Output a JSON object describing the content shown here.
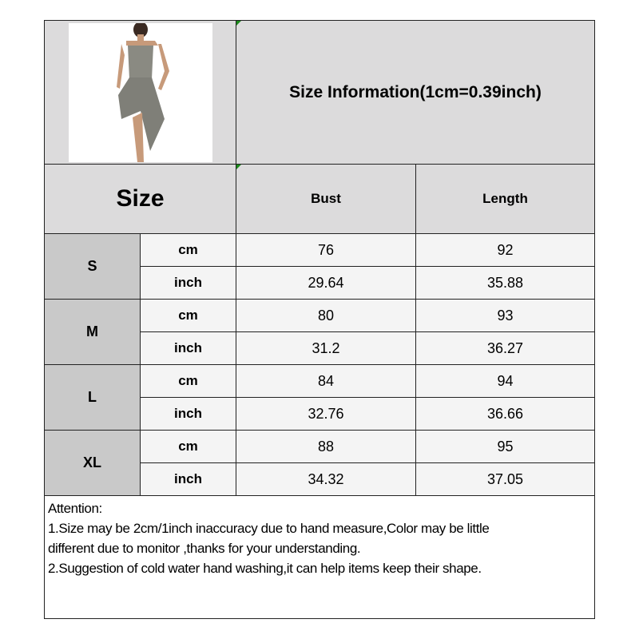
{
  "title": "Size Information(1cm=0.39inch)",
  "header": {
    "size": "Size",
    "bust": "Bust",
    "length": "Length"
  },
  "rows": [
    {
      "size": "S",
      "cm": {
        "unit": "cm",
        "bust": "76",
        "length": "92"
      },
      "inch": {
        "unit": "inch",
        "bust": "29.64",
        "length": "35.88"
      }
    },
    {
      "size": "M",
      "cm": {
        "unit": "cm",
        "bust": "80",
        "length": "93"
      },
      "inch": {
        "unit": "inch",
        "bust": "31.2",
        "length": "36.27"
      }
    },
    {
      "size": "L",
      "cm": {
        "unit": "cm",
        "bust": "84",
        "length": "94"
      },
      "inch": {
        "unit": "inch",
        "bust": "32.76",
        "length": "36.66"
      }
    },
    {
      "size": "XL",
      "cm": {
        "unit": "cm",
        "bust": "88",
        "length": "95"
      },
      "inch": {
        "unit": "inch",
        "bust": "34.32",
        "length": "37.05"
      }
    }
  ],
  "notes": [
    "Attention:",
    "1.Size may be 2cm/1inch inaccuracy due to hand measure,Color may be little",
    "different due to monitor ,thanks for your understanding.",
    "2.Suggestion of cold water hand washing,it can help items keep their shape."
  ],
  "colors": {
    "header_bg": "#dcdbdc",
    "size_col_bg": "#c9c9c9",
    "cell_bg": "#f4f4f4",
    "dress": "#8a8a82"
  }
}
